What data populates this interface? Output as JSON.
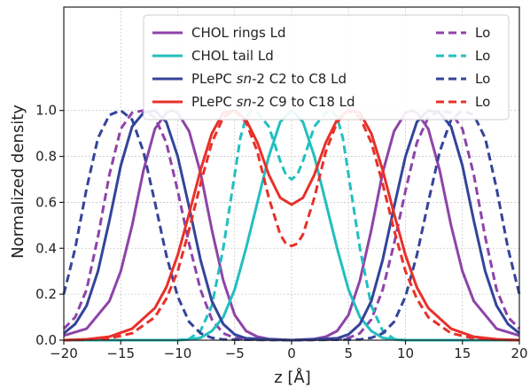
{
  "chart_data": {
    "type": "line",
    "xlabel": "z [Å]",
    "ylabel": "Normalized density",
    "xlim": [
      -20,
      20
    ],
    "ylim": [
      0,
      1.45
    ],
    "x_ticks": [
      "−20",
      "−15",
      "−10",
      "−5",
      "0",
      "5",
      "10",
      "15",
      "20"
    ],
    "x_tick_values": [
      -20,
      -15,
      -10,
      -5,
      0,
      5,
      10,
      15,
      20
    ],
    "y_ticks": [
      "0.0",
      "0.2",
      "0.4",
      "0.6",
      "0.8",
      "1.0"
    ],
    "y_tick_values": [
      0,
      0.2,
      0.4,
      0.6,
      0.8,
      1.0
    ],
    "grid": true,
    "legend_position": "top-right",
    "legend": [
      {
        "label_pre": "CHOL rings Ld",
        "label_ital": "",
        "label_post": "",
        "dashed_label": "Lo",
        "color": "#8e44a8"
      },
      {
        "label_pre": "CHOL tail Ld",
        "label_ital": "",
        "label_post": "",
        "dashed_label": "Lo",
        "color": "#22bfbf"
      },
      {
        "label_pre": "PLePC ",
        "label_ital": "sn",
        "label_post": "-2 C2 to C8 Ld",
        "dashed_label": "Lo",
        "color": "#34449a"
      },
      {
        "label_pre": "PLePC ",
        "label_ital": "sn",
        "label_post": "-2 C9 to C18 Ld",
        "dashed_label": "Lo",
        "color": "#e8302a"
      }
    ],
    "series": [
      {
        "color": "#8e44a8",
        "dash": false,
        "x": [
          -20,
          -18,
          -16,
          -15,
          -14,
          -13,
          -12,
          -11,
          -10.5,
          -10,
          -9,
          -8,
          -7,
          -6,
          -5,
          -4,
          -3,
          -2,
          0,
          2,
          3,
          4,
          5,
          6,
          7,
          8,
          9,
          10,
          10.5,
          11,
          12,
          13,
          14,
          15,
          16,
          18,
          20
        ],
        "y": [
          0.02,
          0.05,
          0.17,
          0.3,
          0.5,
          0.74,
          0.92,
          0.99,
          1.0,
          0.99,
          0.91,
          0.73,
          0.48,
          0.26,
          0.11,
          0.04,
          0.015,
          0.005,
          0,
          0.005,
          0.015,
          0.04,
          0.11,
          0.26,
          0.48,
          0.73,
          0.91,
          0.99,
          1.0,
          0.99,
          0.92,
          0.74,
          0.5,
          0.3,
          0.17,
          0.05,
          0.02
        ]
      },
      {
        "color": "#8e44a8",
        "dash": true,
        "x": [
          -20,
          -19,
          -18,
          -17,
          -16,
          -15,
          -14,
          -13,
          -12,
          -11,
          -10,
          -9,
          -8,
          -7,
          -6,
          -5,
          -4,
          0,
          4,
          5,
          6,
          7,
          8,
          9,
          10,
          11,
          12,
          13,
          14,
          15,
          16,
          17,
          18,
          19,
          20
        ],
        "y": [
          0.05,
          0.1,
          0.22,
          0.45,
          0.72,
          0.92,
          0.99,
          1.0,
          0.97,
          0.86,
          0.65,
          0.42,
          0.22,
          0.09,
          0.03,
          0.01,
          0.003,
          0,
          0.003,
          0.01,
          0.03,
          0.09,
          0.22,
          0.42,
          0.65,
          0.86,
          0.97,
          1.0,
          0.99,
          0.92,
          0.72,
          0.45,
          0.22,
          0.1,
          0.05
        ]
      },
      {
        "color": "#22bfbf",
        "dash": false,
        "x": [
          -20,
          -10,
          -9,
          -8,
          -7,
          -6,
          -5,
          -4,
          -3,
          -2,
          -1,
          0,
          1,
          2,
          3,
          4,
          5,
          6,
          7,
          8,
          9,
          10,
          20
        ],
        "y": [
          0,
          0,
          0.003,
          0.01,
          0.04,
          0.1,
          0.22,
          0.4,
          0.6,
          0.8,
          0.95,
          1.0,
          0.95,
          0.8,
          0.6,
          0.4,
          0.22,
          0.1,
          0.04,
          0.01,
          0.003,
          0,
          0
        ]
      },
      {
        "color": "#22bfbf",
        "dash": true,
        "x": [
          -20,
          -10,
          -9,
          -8,
          -7,
          -6,
          -5,
          -4.5,
          -4,
          -3.5,
          -3,
          -2,
          -1,
          -0.5,
          0,
          0.5,
          1,
          2,
          3,
          3.5,
          4,
          4.5,
          5,
          6,
          7,
          8,
          9,
          10,
          20
        ],
        "y": [
          0,
          0,
          0.005,
          0.04,
          0.15,
          0.4,
          0.72,
          0.88,
          0.97,
          1.0,
          0.99,
          0.93,
          0.78,
          0.72,
          0.7,
          0.72,
          0.78,
          0.93,
          0.99,
          1.0,
          0.97,
          0.88,
          0.72,
          0.4,
          0.15,
          0.04,
          0.005,
          0,
          0
        ]
      },
      {
        "color": "#34449a",
        "dash": false,
        "x": [
          -20,
          -19,
          -18,
          -17,
          -16,
          -15,
          -14,
          -13,
          -12,
          -11,
          -10,
          -9,
          -8,
          -7,
          -6,
          -5,
          -4,
          0,
          4,
          5,
          6,
          7,
          8,
          9,
          10,
          11,
          12,
          13,
          14,
          15,
          16,
          17,
          18,
          19,
          20
        ],
        "y": [
          0.03,
          0.07,
          0.15,
          0.3,
          0.52,
          0.76,
          0.93,
          0.99,
          1.0,
          0.95,
          0.8,
          0.58,
          0.35,
          0.17,
          0.07,
          0.025,
          0.008,
          0,
          0.008,
          0.025,
          0.07,
          0.17,
          0.35,
          0.58,
          0.8,
          0.95,
          1.0,
          0.99,
          0.93,
          0.76,
          0.52,
          0.3,
          0.15,
          0.07,
          0.03
        ]
      },
      {
        "color": "#34449a",
        "dash": true,
        "x": [
          -20,
          -19,
          -18,
          -17,
          -16,
          -15,
          -14,
          -13,
          -12,
          -11,
          -10,
          -9,
          -8,
          -7,
          -6,
          0,
          6,
          7,
          8,
          9,
          10,
          11,
          12,
          13,
          14,
          15,
          16,
          17,
          18,
          19,
          20
        ],
        "y": [
          0.2,
          0.4,
          0.66,
          0.88,
          0.98,
          1.0,
          0.96,
          0.82,
          0.6,
          0.37,
          0.19,
          0.08,
          0.03,
          0.01,
          0.003,
          0,
          0.003,
          0.01,
          0.03,
          0.08,
          0.19,
          0.37,
          0.6,
          0.82,
          0.96,
          1.0,
          0.98,
          0.88,
          0.66,
          0.4,
          0.2
        ]
      },
      {
        "color": "#e8302a",
        "dash": false,
        "x": [
          -20,
          -18,
          -16,
          -14,
          -12,
          -11,
          -10,
          -9,
          -8,
          -7,
          -6,
          -5,
          -4,
          -3,
          -2,
          -1,
          0,
          1,
          2,
          3,
          4,
          5,
          6,
          7,
          8,
          9,
          10,
          11,
          12,
          14,
          16,
          18,
          20
        ],
        "y": [
          0,
          0.004,
          0.015,
          0.05,
          0.14,
          0.23,
          0.37,
          0.55,
          0.74,
          0.9,
          0.99,
          1.0,
          0.96,
          0.86,
          0.72,
          0.62,
          0.59,
          0.62,
          0.72,
          0.86,
          0.96,
          1.0,
          0.99,
          0.9,
          0.74,
          0.55,
          0.37,
          0.23,
          0.14,
          0.05,
          0.015,
          0.004,
          0
        ]
      },
      {
        "color": "#e8302a",
        "dash": true,
        "x": [
          -20,
          -18,
          -16,
          -14,
          -12,
          -11,
          -10,
          -9,
          -8,
          -7,
          -6,
          -5,
          -4,
          -3,
          -2,
          -1,
          -0.5,
          0,
          0.5,
          1,
          2,
          3,
          4,
          5,
          6,
          7,
          8,
          9,
          10,
          11,
          12,
          14,
          16,
          18,
          20
        ],
        "y": [
          0,
          0.002,
          0.008,
          0.03,
          0.1,
          0.18,
          0.3,
          0.48,
          0.68,
          0.86,
          0.97,
          1.0,
          0.95,
          0.82,
          0.62,
          0.46,
          0.42,
          0.41,
          0.42,
          0.46,
          0.62,
          0.82,
          0.95,
          1.0,
          0.97,
          0.86,
          0.68,
          0.48,
          0.3,
          0.18,
          0.1,
          0.03,
          0.008,
          0.002,
          0
        ]
      }
    ]
  }
}
